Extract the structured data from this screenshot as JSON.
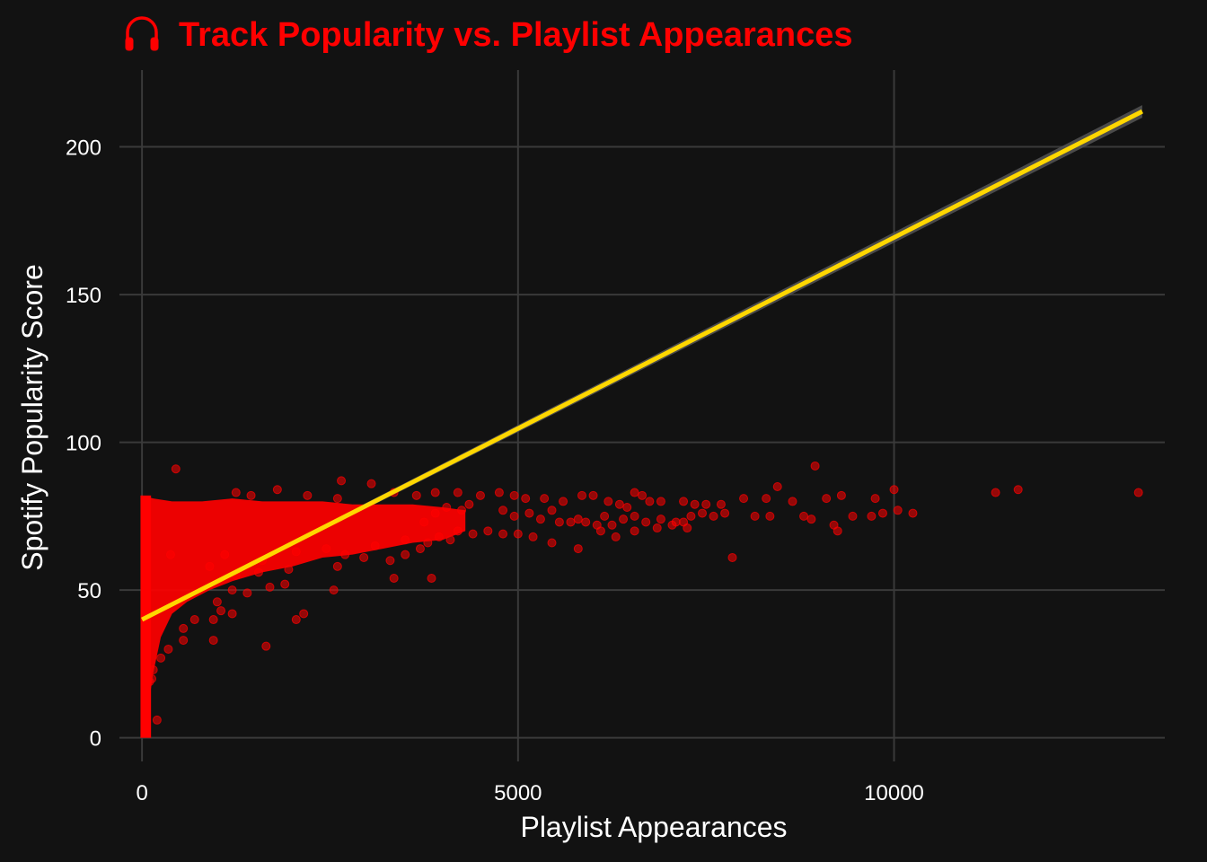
{
  "chart_data": {
    "type": "scatter",
    "title": "Track Popularity vs. Playlist Appearances",
    "title_icon": "headphones-icon",
    "xlabel": "Playlist Appearances",
    "ylabel": "Spotify Popularity Score",
    "xlim": [
      -300,
      13600
    ],
    "ylim": [
      -8,
      226
    ],
    "x_ticks": [
      0,
      5000,
      10000
    ],
    "y_ticks": [
      0,
      50,
      100,
      150,
      200
    ],
    "grid": true,
    "legend": "none",
    "colors": {
      "background": "#121212",
      "grid": "#3a3a3a",
      "points": "#ff0000",
      "trend_line": "#ffd700",
      "confidence_band": "#555555",
      "title": "#ff0000",
      "text": "#ffffff"
    },
    "trend_line": {
      "method": "linear",
      "x": [
        0,
        13300
      ],
      "y": [
        40,
        212
      ]
    },
    "points": [
      [
        450,
        91
      ],
      [
        2650,
        87
      ],
      [
        3050,
        86
      ],
      [
        1250,
        83
      ],
      [
        1450,
        82
      ],
      [
        1800,
        84
      ],
      [
        2200,
        82
      ],
      [
        2600,
        81
      ],
      [
        3350,
        83
      ],
      [
        3650,
        82
      ],
      [
        3900,
        83
      ],
      [
        4200,
        83
      ],
      [
        4500,
        82
      ],
      [
        4750,
        83
      ],
      [
        4950,
        82
      ],
      [
        5100,
        81
      ],
      [
        5350,
        81
      ],
      [
        5600,
        80
      ],
      [
        5850,
        82
      ],
      [
        6000,
        82
      ],
      [
        6200,
        80
      ],
      [
        6350,
        79
      ],
      [
        6450,
        78
      ],
      [
        6550,
        83
      ],
      [
        6650,
        82
      ],
      [
        6750,
        80
      ],
      [
        6900,
        80
      ],
      [
        7200,
        80
      ],
      [
        7350,
        79
      ],
      [
        7500,
        79
      ],
      [
        7700,
        79
      ],
      [
        8000,
        81
      ],
      [
        8300,
        81
      ],
      [
        8450,
        85
      ],
      [
        8650,
        80
      ],
      [
        8950,
        92
      ],
      [
        9100,
        81
      ],
      [
        9300,
        82
      ],
      [
        9750,
        81
      ],
      [
        10000,
        84
      ],
      [
        11350,
        83
      ],
      [
        11650,
        84
      ],
      [
        13250,
        83
      ],
      [
        4800,
        77
      ],
      [
        4950,
        75
      ],
      [
        5150,
        76
      ],
      [
        5300,
        74
      ],
      [
        5450,
        77
      ],
      [
        5550,
        73
      ],
      [
        5700,
        73
      ],
      [
        5800,
        74
      ],
      [
        5900,
        73
      ],
      [
        6050,
        72
      ],
      [
        6150,
        75
      ],
      [
        6250,
        72
      ],
      [
        6400,
        74
      ],
      [
        6550,
        75
      ],
      [
        6700,
        73
      ],
      [
        6900,
        74
      ],
      [
        7050,
        72
      ],
      [
        7200,
        73
      ],
      [
        7300,
        75
      ],
      [
        7450,
        76
      ],
      [
        7600,
        75
      ],
      [
        7750,
        76
      ],
      [
        8150,
        75
      ],
      [
        8350,
        75
      ],
      [
        8800,
        75
      ],
      [
        8900,
        74
      ],
      [
        9200,
        72
      ],
      [
        9450,
        75
      ],
      [
        9700,
        75
      ],
      [
        9850,
        76
      ],
      [
        10050,
        77
      ],
      [
        10250,
        76
      ],
      [
        4200,
        70
      ],
      [
        4400,
        69
      ],
      [
        4600,
        70
      ],
      [
        4800,
        69
      ],
      [
        5000,
        69
      ],
      [
        5200,
        68
      ],
      [
        5450,
        66
      ],
      [
        5800,
        64
      ],
      [
        6100,
        70
      ],
      [
        6300,
        68
      ],
      [
        6550,
        70
      ],
      [
        6850,
        71
      ],
      [
        7100,
        73
      ],
      [
        7250,
        71
      ],
      [
        7850,
        61
      ],
      [
        9250,
        70
      ],
      [
        3750,
        73
      ],
      [
        3900,
        76
      ],
      [
        4050,
        78
      ],
      [
        4250,
        77
      ],
      [
        4350,
        79
      ],
      [
        3950,
        68
      ],
      [
        3700,
        64
      ],
      [
        3500,
        62
      ],
      [
        3300,
        60
      ],
      [
        2950,
        61
      ],
      [
        2700,
        62
      ],
      [
        2600,
        58
      ],
      [
        1950,
        57
      ],
      [
        1550,
        56
      ],
      [
        1250,
        55
      ],
      [
        3850,
        54
      ],
      [
        3350,
        54
      ],
      [
        2550,
        50
      ],
      [
        1900,
        52
      ],
      [
        1700,
        51
      ],
      [
        1400,
        49
      ],
      [
        1200,
        50
      ],
      [
        1000,
        46
      ],
      [
        1050,
        43
      ],
      [
        1200,
        42
      ],
      [
        950,
        40
      ],
      [
        700,
        40
      ],
      [
        550,
        37
      ],
      [
        950,
        33
      ],
      [
        2050,
        40
      ],
      [
        2150,
        42
      ],
      [
        550,
        33
      ],
      [
        350,
        30
      ],
      [
        250,
        27
      ],
      [
        1650,
        31
      ],
      [
        200,
        6
      ],
      [
        100,
        19
      ],
      [
        130,
        20
      ],
      [
        150,
        23
      ],
      [
        380,
        62
      ],
      [
        900,
        58
      ],
      [
        1100,
        62
      ],
      [
        1600,
        60
      ],
      [
        2050,
        63
      ],
      [
        2450,
        64
      ],
      [
        3100,
        65
      ],
      [
        3500,
        67
      ],
      [
        3800,
        66
      ],
      [
        4100,
        67
      ]
    ]
  }
}
